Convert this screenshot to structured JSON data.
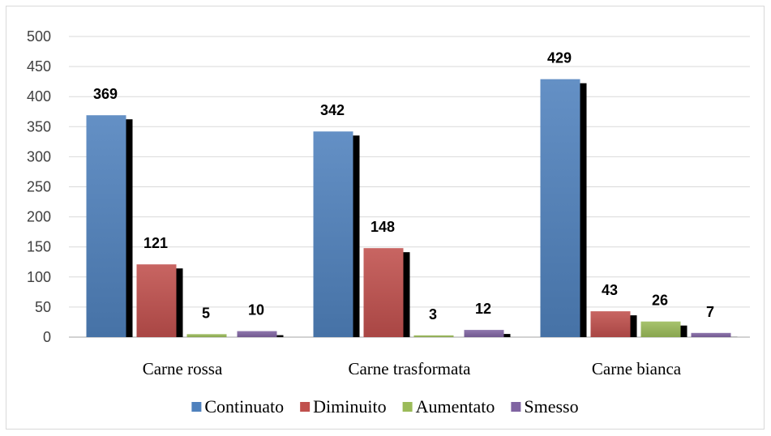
{
  "chart_data": {
    "type": "bar",
    "title": "",
    "xlabel": "",
    "ylabel": "",
    "ylim": [
      0,
      500
    ],
    "yticks": [
      0,
      50,
      100,
      150,
      200,
      250,
      300,
      350,
      400,
      450,
      500
    ],
    "grid": "horizontal",
    "legend_position": "bottom",
    "categories": [
      "Carne rossa",
      "Carne trasformata",
      "Carne bianca"
    ],
    "series": [
      {
        "name": "Continuato",
        "color": "#4f81bd",
        "values": [
          369,
          342,
          429
        ]
      },
      {
        "name": "Diminuito",
        "color": "#c0504d",
        "values": [
          121,
          148,
          43
        ]
      },
      {
        "name": "Aumentato",
        "color": "#9bbb59",
        "values": [
          5,
          3,
          26
        ]
      },
      {
        "name": "Smesso",
        "color": "#8064a2",
        "values": [
          10,
          12,
          7
        ]
      }
    ]
  }
}
